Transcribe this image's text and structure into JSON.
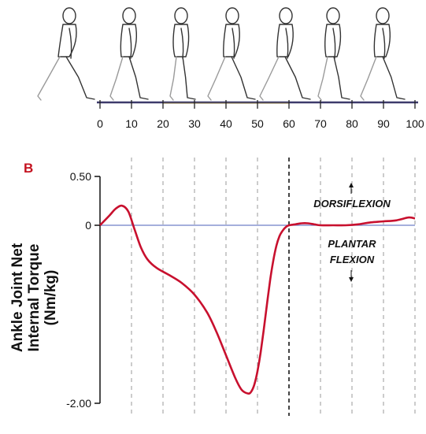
{
  "chart_data": {
    "type": "line",
    "panel_label": "B",
    "ylabel_lines": [
      "Ankle Joint Net",
      "Internal Torque",
      "(Nm/kg)"
    ],
    "xlim": [
      0,
      100
    ],
    "ylim": [
      -2.0,
      0.5
    ],
    "x_ticks": [
      0,
      10,
      20,
      30,
      40,
      50,
      60,
      70,
      80,
      90,
      100
    ],
    "x_tick_labels": [
      "0",
      "10",
      "20",
      "30",
      "40",
      "50",
      "60",
      "70",
      "80",
      "90",
      "100"
    ],
    "y_ticks": [
      0.5,
      0,
      -2.0
    ],
    "y_tick_labels": [
      "0.50",
      "0",
      "-2.00"
    ],
    "grid": "vertical dashed every 10%",
    "toe_off_line_x": 60,
    "annotations": {
      "dorsiflexion": "DORSIFLEXION",
      "plantar_line1": "PLANTAR",
      "plantar_line2": "FLEXION"
    },
    "series": [
      {
        "color": "#c8102e",
        "x": [
          0,
          3,
          5,
          7,
          9,
          11,
          13,
          15,
          18,
          22,
          26,
          30,
          34,
          37,
          40,
          43,
          45,
          47,
          48,
          49,
          50,
          51,
          52,
          53,
          54,
          55,
          56,
          57,
          58,
          59,
          60,
          62,
          64,
          66,
          68,
          70,
          74,
          78,
          82,
          86,
          90,
          94,
          98,
          100
        ],
        "y": [
          0,
          0.1,
          0.17,
          0.2,
          0.14,
          -0.05,
          -0.25,
          -0.38,
          -0.48,
          -0.56,
          -0.65,
          -0.78,
          -0.98,
          -1.2,
          -1.46,
          -1.72,
          -1.85,
          -1.89,
          -1.87,
          -1.79,
          -1.64,
          -1.43,
          -1.17,
          -0.89,
          -0.62,
          -0.4,
          -0.23,
          -0.12,
          -0.06,
          -0.02,
          0.0,
          0.01,
          0.02,
          0.02,
          0.01,
          0.0,
          0.0,
          0.0,
          0.01,
          0.03,
          0.04,
          0.05,
          0.08,
          0.07
        ]
      }
    ]
  }
}
